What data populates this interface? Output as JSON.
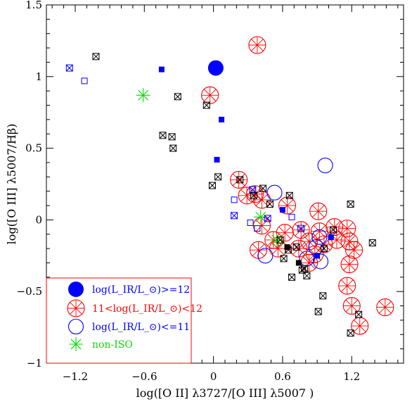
{
  "chart_data": {
    "type": "scatter",
    "xlabel": "log([O II] λ3727/[O III] λ5007 )",
    "ylabel": "log([O III] λ5007/Hβ)",
    "xlim": [
      -1.45,
      1.65
    ],
    "ylim": [
      -1.0,
      1.5
    ],
    "x_ticks": [
      "−1.2",
      "−0.6",
      "0",
      "0.6",
      "1.2"
    ],
    "x_tick_values": [
      -1.2,
      -0.6,
      0,
      0.6,
      1.2
    ],
    "y_ticks": [
      "1.5",
      "1",
      "0.5",
      "0",
      "−0.5",
      "−1"
    ],
    "y_tick_values": [
      1.5,
      1.0,
      0.5,
      0.0,
      -0.5,
      -1.0
    ],
    "legend_placement": "bottom-left",
    "legend": [
      {
        "label": "log(L_IR/L_⊙)>=12",
        "color": "#0000ff",
        "marker": "filled-circle"
      },
      {
        "label": "11<log(L_IR/L_⊙)<12",
        "color": "#ff0000",
        "marker": "asterisk-circle"
      },
      {
        "label": "log(L_IR/L_⊙)<=11",
        "color": "#0000ff",
        "marker": "open-circle"
      },
      {
        "label": "non-ISO",
        "color": "#00dd00",
        "marker": "asterisk"
      }
    ],
    "series": [
      {
        "marker": "filled-circle",
        "color": "#0000ff",
        "points": [
          [
            0.02,
            1.06
          ]
        ]
      },
      {
        "marker": "asterisk-circle",
        "color": "#ff0000",
        "points": [
          [
            -0.03,
            0.87
          ],
          [
            0.38,
            1.22
          ],
          [
            0.22,
            0.28
          ],
          [
            0.29,
            0.17
          ],
          [
            0.36,
            0.18
          ],
          [
            0.42,
            0.14
          ],
          [
            0.42,
            -0.04
          ],
          [
            0.52,
            -0.14
          ],
          [
            0.39,
            -0.21
          ],
          [
            0.56,
            -0.2
          ],
          [
            0.62,
            -0.09
          ],
          [
            0.64,
            0.1
          ],
          [
            0.74,
            -0.2
          ],
          [
            0.76,
            -0.07
          ],
          [
            0.83,
            -0.15
          ],
          [
            0.83,
            -0.3
          ],
          [
            0.88,
            -0.24
          ],
          [
            0.91,
            0.06
          ],
          [
            0.92,
            -0.08
          ],
          [
            0.96,
            -0.17
          ],
          [
            1.05,
            -0.05
          ],
          [
            1.07,
            -0.14
          ],
          [
            1.16,
            -0.06
          ],
          [
            1.16,
            -0.46
          ],
          [
            1.18,
            -0.31
          ],
          [
            1.2,
            -0.6
          ],
          [
            1.18,
            -0.15
          ],
          [
            1.22,
            -0.21
          ],
          [
            1.27,
            -0.74
          ],
          [
            1.49,
            -0.61
          ]
        ]
      },
      {
        "marker": "open-circle",
        "color": "#0000ff",
        "points": [
          [
            0.53,
            0.19
          ],
          [
            0.97,
            0.38
          ],
          [
            0.45,
            -0.25
          ],
          [
            0.81,
            -0.27
          ],
          [
            0.93,
            -0.29
          ],
          [
            0.92,
            -0.12
          ],
          [
            0.89,
            -0.19
          ]
        ]
      },
      {
        "marker": "asterisk",
        "color": "#00dd00",
        "points": [
          [
            -0.61,
            0.87
          ],
          [
            0.41,
            0.02
          ],
          [
            0.55,
            -0.14
          ]
        ]
      },
      {
        "marker": "filled-square",
        "color": "#0000ff",
        "points": [
          [
            -0.45,
            1.05
          ],
          [
            0.07,
            0.7
          ],
          [
            0.03,
            0.42
          ],
          [
            0.6,
            0.07
          ],
          [
            1.02,
            -0.12
          ],
          [
            0.9,
            -0.25
          ]
        ]
      },
      {
        "marker": "filled-square",
        "color": "#000000",
        "points": [
          [
            0.64,
            -0.19
          ],
          [
            0.74,
            -0.3
          ]
        ]
      },
      {
        "marker": "open-square",
        "color": "#0000ff",
        "points": [
          [
            -1.12,
            0.97
          ],
          [
            0.18,
            0.14
          ],
          [
            0.32,
            -0.02
          ],
          [
            0.38,
            -0.06
          ],
          [
            0.68,
            0.02
          ]
        ]
      },
      {
        "marker": "crossed-square",
        "color": "#0000ff",
        "points": [
          [
            -1.25,
            1.06
          ],
          [
            0.18,
            0.03
          ],
          [
            0.34,
            0.21
          ],
          [
            0.47,
            0.01
          ],
          [
            0.76,
            -0.06
          ]
        ]
      },
      {
        "marker": "crossed-square",
        "color": "#000000",
        "points": [
          [
            -1.02,
            1.14
          ],
          [
            -0.31,
            0.86
          ],
          [
            -0.06,
            0.8
          ],
          [
            -0.44,
            0.59
          ],
          [
            -0.36,
            0.58
          ],
          [
            -0.35,
            0.5
          ],
          [
            0.04,
            0.3
          ],
          [
            -0.01,
            0.24
          ],
          [
            0.23,
            0.28
          ],
          [
            0.43,
            0.22
          ],
          [
            0.49,
            0.11
          ],
          [
            0.58,
            -0.14
          ],
          [
            0.61,
            -0.27
          ],
          [
            0.66,
            0.17
          ],
          [
            0.65,
            -0.21
          ],
          [
            0.72,
            -0.19
          ],
          [
            0.68,
            -0.4
          ],
          [
            0.77,
            -0.35
          ],
          [
            0.81,
            -0.39
          ],
          [
            0.79,
            -0.34
          ],
          [
            0.91,
            -0.64
          ],
          [
            0.95,
            -0.53
          ],
          [
            0.96,
            -0.2
          ],
          [
            1.04,
            -0.07
          ],
          [
            1.19,
            0.11
          ],
          [
            1.19,
            -0.79
          ],
          [
            1.26,
            -0.66
          ],
          [
            1.38,
            -0.16
          ],
          [
            0.35,
            0.17
          ]
        ]
      }
    ]
  }
}
